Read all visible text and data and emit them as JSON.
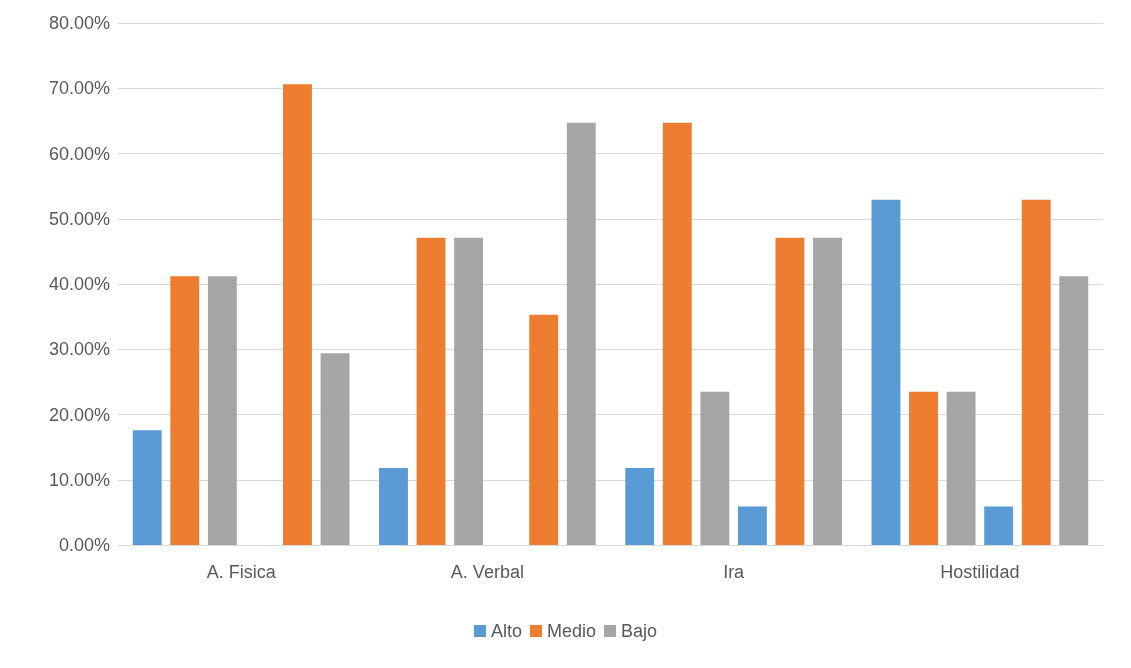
{
  "chart_data": {
    "type": "bar",
    "categories": [
      "A. Fisica",
      "A. Verbal",
      "Ira",
      "Hostilidad"
    ],
    "series": [
      {
        "name": "Alto",
        "color": "#5b9bd5",
        "values": [
          17.6,
          11.8,
          11.8,
          52.9
        ]
      },
      {
        "name": "Medio",
        "color": "#ed7d31",
        "values": [
          41.2,
          47.1,
          64.7,
          23.5
        ]
      },
      {
        "name": "Bajo",
        "color": "#a5a5a5",
        "values": [
          41.2,
          47.1,
          23.5,
          23.5
        ]
      },
      {
        "color": "#5b9bd5",
        "values": [
          0,
          0,
          5.9,
          5.9
        ]
      },
      {
        "color": "#ed7d31",
        "values": [
          70.6,
          35.3,
          47.1,
          52.9
        ]
      },
      {
        "color": "#a5a5a5",
        "values": [
          29.4,
          64.7,
          47.1,
          41.2
        ]
      }
    ],
    "ylim": [
      0,
      80
    ],
    "yticks": [
      {
        "value": 0,
        "label": "0.00%"
      },
      {
        "value": 10,
        "label": "10.00%"
      },
      {
        "value": 20,
        "label": "20.00%"
      },
      {
        "value": 30,
        "label": "30.00%"
      },
      {
        "value": 40,
        "label": "40.00%"
      },
      {
        "value": 50,
        "label": "50.00%"
      },
      {
        "value": 60,
        "label": "60.00%"
      },
      {
        "value": 70,
        "label": "70.00%"
      },
      {
        "value": 80,
        "label": "80.00%"
      }
    ],
    "grid": "y",
    "legend": "bottom"
  }
}
